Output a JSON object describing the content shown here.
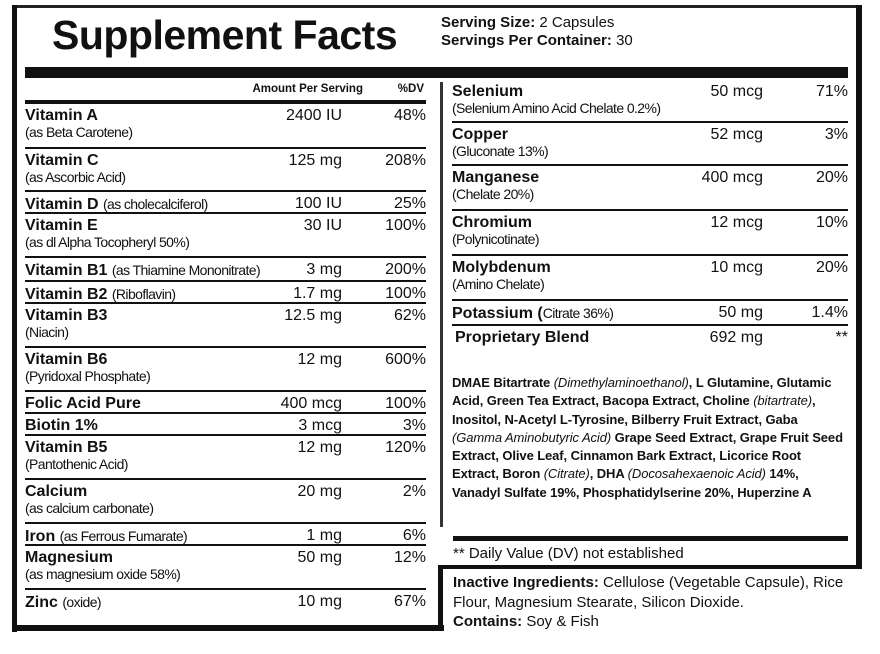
{
  "title": "Supplement Facts",
  "serving": {
    "size_label": "Serving Size:",
    "size_value": "2 Capsules",
    "per_container_label": "Servings Per Container:",
    "per_container_value": "30"
  },
  "columns": {
    "amount_header": "Amount Per Serving",
    "dv_header": "%DV"
  },
  "left_rows": [
    {
      "name": "Vitamin A",
      "inline": "",
      "sub": "(as Beta Carotene)",
      "amount": "2400 IU",
      "dv": "48%"
    },
    {
      "name": "Vitamin C",
      "inline": "",
      "sub": "(as Ascorbic Acid)",
      "amount": "125 mg",
      "dv": "208%"
    },
    {
      "name": "Vitamin D",
      "inline": "(as cholecalciferol)",
      "sub": "",
      "amount": "100 IU",
      "dv": "25%"
    },
    {
      "name": "Vitamin E",
      "inline": "",
      "sub": "(as dl Alpha Tocopheryl 50%)",
      "amount": "30 IU",
      "dv": "100%"
    },
    {
      "name": "Vitamin B1",
      "inline": "(as Thiamine Mononitrate)",
      "sub": "",
      "amount": "3 mg",
      "dv": "200%"
    },
    {
      "name": "Vitamin B2",
      "inline": "(Riboflavin)",
      "sub": "",
      "amount": "1.7 mg",
      "dv": "100%"
    },
    {
      "name": "Vitamin B3",
      "inline": "",
      "sub": "(Niacin)",
      "amount": "12.5 mg",
      "dv": "62%"
    },
    {
      "name": "Vitamin B6",
      "inline": "",
      "sub": "(Pyridoxal Phosphate)",
      "amount": "12 mg",
      "dv": "600%"
    },
    {
      "name": "Folic Acid Pure",
      "inline": "",
      "sub": "",
      "amount": "400 mcg",
      "dv": "100%"
    },
    {
      "name": "Biotin 1%",
      "inline": "",
      "sub": "",
      "amount": "3 mcg",
      "dv": "3%"
    },
    {
      "name": "Vitamin B5",
      "inline": "",
      "sub": "(Pantothenic Acid)",
      "amount": "12 mg",
      "dv": "120%"
    },
    {
      "name": "Calcium",
      "inline": "",
      "sub": "(as calcium carbonate)",
      "amount": "20 mg",
      "dv": "2%"
    },
    {
      "name": "Iron",
      "inline": "(as Ferrous Fumarate)",
      "sub": "",
      "amount": "1 mg",
      "dv": "6%"
    },
    {
      "name": "Magnesium",
      "inline": "",
      "sub": "(as magnesium oxide 58%)",
      "amount": "50 mg",
      "dv": "12%"
    },
    {
      "name": "Zinc",
      "inline": "(oxide)",
      "sub": "",
      "amount": "10 mg",
      "dv": "67%"
    }
  ],
  "right_rows": [
    {
      "name": "Selenium",
      "inline": "",
      "sub": "(Selenium Amino Acid Chelate 0.2%)",
      "amount": "50 mcg",
      "dv": "71%"
    },
    {
      "name": "Copper",
      "inline": "",
      "sub": "(Gluconate 13%)",
      "amount": "52 mcg",
      "dv": "3%"
    },
    {
      "name": "Manganese",
      "inline": "",
      "sub": "(Chelate 20%)",
      "amount": "400 mcg",
      "dv": "20%"
    },
    {
      "name": "Chromium",
      "inline": "",
      "sub": "(Polynicotinate)",
      "amount": "12 mcg",
      "dv": "10%"
    },
    {
      "name": "Molybdenum",
      "inline": "",
      "sub": "(Amino Chelate)",
      "amount": "10 mcg",
      "dv": "20%"
    },
    {
      "name": "Potassium (",
      "inline": "Citrate 36%)",
      "sub": "",
      "amount": "50 mg",
      "dv": "1.4%"
    },
    {
      "name": "Proprietary Blend",
      "inline": "",
      "sub": "",
      "amount": "692 mg",
      "dv": "**"
    }
  ],
  "blend_ingredients": [
    {
      "text": "DMAE Bitartrate ",
      "italic": false
    },
    {
      "text": "(Dimethylaminoethanol)",
      "italic": true
    },
    {
      "text": ", L Glutamine, Glutamic Acid, Green Tea Extract, Bacopa Extract, Choline ",
      "italic": false
    },
    {
      "text": "(bitartrate)",
      "italic": true
    },
    {
      "text": ", Inositol, N-Acetyl L-Tyrosine, Bilberry Fruit Extract, Gaba ",
      "italic": false
    },
    {
      "text": "(Gamma Aminobutyric Acid)",
      "italic": true
    },
    {
      "text": " Grape Seed Extract, Grape Fruit Seed Extract, Olive Leaf, Cinnamon Bark Extract, Licorice Root Extract, Boron ",
      "italic": false
    },
    {
      "text": "(Citrate)",
      "italic": true
    },
    {
      "text": ", DHA ",
      "italic": false
    },
    {
      "text": "(Docosahexaenoic Acid)",
      "italic": true
    },
    {
      "text": " 14%, Vanadyl Sulfate 19%, Phosphatidylserine 20%, Huperzine A",
      "italic": false
    }
  ],
  "dv_note": "** Daily Value (DV) not established",
  "inactive": {
    "label": "Inactive Ingredients:",
    "text": " Cellulose (Vegetable Capsule), Rice Flour, Magnesium Stearate, Silicon Dioxide.",
    "contains_label": "Contains:",
    "contains_text": " Soy & Fish"
  }
}
